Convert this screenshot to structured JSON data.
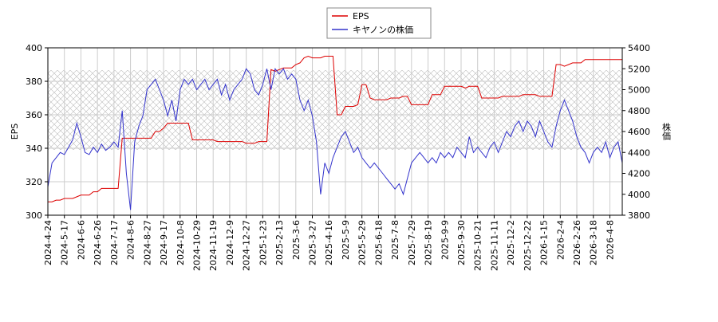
{
  "chart_data": {
    "type": "line",
    "x": [
      "2024-4-24",
      null,
      null,
      null,
      "2024-5-17",
      null,
      null,
      null,
      "2024-6-6",
      null,
      null,
      null,
      "2024-6-26",
      null,
      null,
      null,
      "2024-7-17",
      null,
      null,
      null,
      "2024-8-6",
      null,
      null,
      null,
      "2024-8-27",
      null,
      null,
      null,
      "2024-9-17",
      null,
      null,
      null,
      "2024-10-8",
      null,
      null,
      null,
      "2024-10-29",
      null,
      null,
      null,
      "2024-11-19",
      null,
      null,
      null,
      "2024-12-9",
      null,
      null,
      null,
      "2024-12-27",
      null,
      null,
      null,
      "2025-1-23",
      null,
      null,
      null,
      "2025-2-13",
      null,
      null,
      null,
      "2025-3-6",
      null,
      null,
      null,
      "2025-3-27",
      null,
      null,
      null,
      "2025-4-16",
      null,
      null,
      null,
      "2025-5-9",
      null,
      null,
      null,
      "2025-5-29",
      null,
      null,
      null,
      "2025-6-18",
      null,
      null,
      null,
      "2025-7-8",
      null,
      null,
      null,
      "2025-7-29",
      null,
      null,
      null,
      "2025-8-19",
      null,
      null,
      null,
      "2025-9-9",
      null,
      null,
      null,
      "2025-9-30",
      null,
      null,
      null,
      "2025-10-21",
      null,
      null,
      null,
      "2025-11-11",
      null,
      null,
      null,
      "2025-12-2",
      null,
      null,
      null,
      "2025-12-22",
      null,
      null,
      null,
      "2026-1-15",
      null,
      null,
      null,
      "2026-2-4",
      null,
      null,
      null,
      "2026-2-26",
      null,
      null,
      null,
      "2026-3-18",
      null,
      null,
      null,
      "2026-4-8",
      null,
      null,
      null
    ],
    "series": [
      {
        "name": "EPS",
        "color": "#dd0000",
        "axis": "y",
        "values": [
          308,
          308,
          309,
          309,
          310,
          310,
          310,
          311,
          312,
          312,
          312,
          314,
          314,
          316,
          316,
          316,
          316,
          316,
          346,
          346,
          346,
          346,
          346,
          346,
          346,
          346,
          350,
          350,
          352,
          355,
          355,
          355,
          355,
          355,
          355,
          345,
          345,
          345,
          345,
          345,
          345,
          344,
          344,
          344,
          344,
          344,
          344,
          344,
          343,
          343,
          343,
          344,
          344,
          344,
          387,
          386,
          387,
          388,
          388,
          388,
          390,
          391,
          394,
          395,
          394,
          394,
          394,
          395,
          395,
          395,
          360,
          360,
          365,
          365,
          365,
          366,
          378,
          378,
          370,
          369,
          369,
          369,
          369,
          370,
          370,
          370,
          371,
          371,
          366,
          366,
          366,
          366,
          366,
          372,
          372,
          372,
          377,
          377,
          377,
          377,
          377,
          376,
          377,
          377,
          377,
          370,
          370,
          370,
          370,
          370,
          371,
          371,
          371,
          371,
          371,
          372,
          372,
          372,
          372,
          371,
          371,
          371,
          371,
          390,
          390,
          389,
          390,
          391,
          391,
          391,
          393,
          393,
          393,
          393,
          393,
          393,
          393,
          393,
          393,
          393
        ]
      },
      {
        "name": "キヤノンの株価",
        "color": "#3333cc",
        "axis": "y2",
        "values": [
          4070,
          4300,
          4350,
          4400,
          4380,
          4450,
          4520,
          4680,
          4550,
          4400,
          4380,
          4450,
          4400,
          4480,
          4420,
          4450,
          4500,
          4450,
          4800,
          4200,
          3850,
          4500,
          4650,
          4750,
          5000,
          5050,
          5100,
          5000,
          4900,
          4750,
          4900,
          4700,
          5000,
          5100,
          5050,
          5100,
          5000,
          5050,
          5100,
          5000,
          5050,
          5100,
          4950,
          5050,
          4900,
          5000,
          5050,
          5100,
          5200,
          5150,
          5000,
          4950,
          5050,
          5200,
          5000,
          5200,
          5150,
          5200,
          5100,
          5150,
          5100,
          4900,
          4800,
          4900,
          4750,
          4500,
          4000,
          4300,
          4200,
          4350,
          4450,
          4550,
          4600,
          4500,
          4400,
          4450,
          4350,
          4300,
          4250,
          4300,
          4250,
          4200,
          4150,
          4100,
          4050,
          4100,
          4000,
          4150,
          4300,
          4350,
          4400,
          4350,
          4300,
          4350,
          4300,
          4400,
          4350,
          4400,
          4350,
          4450,
          4400,
          4350,
          4550,
          4400,
          4450,
          4400,
          4350,
          4450,
          4500,
          4400,
          4500,
          4600,
          4550,
          4650,
          4700,
          4600,
          4700,
          4650,
          4550,
          4700,
          4600,
          4500,
          4450,
          4650,
          4800,
          4900,
          4800,
          4700,
          4550,
          4450,
          4400,
          4300,
          4400,
          4450,
          4400,
          4500,
          4350,
          4450,
          4500,
          4300
        ]
      }
    ],
    "ylabel": "EPS",
    "y2label": "株価",
    "ylim": [
      300,
      400
    ],
    "yticks": [
      300,
      320,
      340,
      360,
      380,
      400
    ],
    "y2lim": [
      3800,
      5400
    ],
    "y2ticks": [
      3800,
      4000,
      4200,
      4400,
      4600,
      4800,
      5000,
      5200,
      5400
    ],
    "grid": true,
    "legend": "top"
  }
}
